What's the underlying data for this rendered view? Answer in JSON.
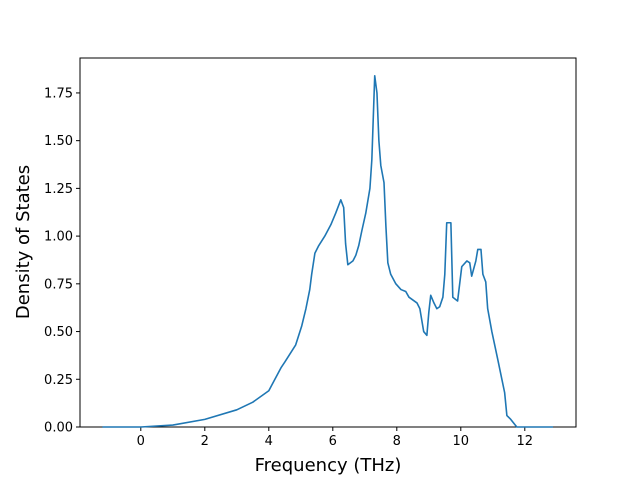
{
  "chart_data": {
    "type": "line",
    "xlabel": "Frequency (THz)",
    "ylabel": "Density of States",
    "x": [
      -1.2,
      0,
      1,
      2,
      3,
      3.5,
      4,
      4.38,
      4.5,
      4.84,
      5.03,
      5.16,
      5.28,
      5.34,
      5.44,
      5.56,
      5.75,
      5.94,
      6.09,
      6.25,
      6.34,
      6.4,
      6.47,
      6.63,
      6.72,
      6.81,
      6.91,
      7.03,
      7.16,
      7.22,
      7.31,
      7.38,
      7.44,
      7.5,
      7.6,
      7.66,
      7.72,
      7.81,
      7.97,
      8.13,
      8.28,
      8.38,
      8.63,
      8.72,
      8.84,
      8.94,
      9.0,
      9.06,
      9.16,
      9.25,
      9.34,
      9.44,
      9.5,
      9.56,
      9.69,
      9.75,
      9.9,
      10.03,
      10.19,
      10.28,
      10.34,
      10.47,
      10.53,
      10.63,
      10.69,
      10.78,
      10.84,
      10.97,
      11.16,
      11.37,
      11.44,
      11.56,
      11.75,
      12.88
    ],
    "series": [
      {
        "color": "#1f77b4",
        "values": [
          0,
          0,
          0.01,
          0.04,
          0.09,
          0.13,
          0.19,
          0.31,
          0.34,
          0.43,
          0.53,
          0.62,
          0.72,
          0.8,
          0.91,
          0.95,
          1.0,
          1.06,
          1.12,
          1.19,
          1.15,
          0.96,
          0.85,
          0.87,
          0.9,
          0.95,
          1.03,
          1.12,
          1.25,
          1.4,
          1.84,
          1.75,
          1.5,
          1.37,
          1.28,
          1.05,
          0.86,
          0.8,
          0.75,
          0.72,
          0.71,
          0.68,
          0.65,
          0.62,
          0.5,
          0.48,
          0.6,
          0.69,
          0.65,
          0.62,
          0.63,
          0.68,
          0.8,
          1.07,
          1.07,
          0.68,
          0.66,
          0.84,
          0.87,
          0.86,
          0.79,
          0.87,
          0.93,
          0.93,
          0.8,
          0.76,
          0.62,
          0.5,
          0.35,
          0.18,
          0.06,
          0.04,
          0,
          0
        ]
      }
    ],
    "xlim": [
      -1.9,
      13.6
    ],
    "ylim": [
      0,
      1.933
    ],
    "xticks": [
      0,
      2,
      4,
      6,
      8,
      10,
      12
    ],
    "yticks": [
      {
        "value": 0,
        "label": "0.00"
      },
      {
        "value": 0.25,
        "label": "0.25"
      },
      {
        "value": 0.5,
        "label": "0.50"
      },
      {
        "value": 0.75,
        "label": "0.75"
      },
      {
        "value": 1.0,
        "label": "1.00"
      },
      {
        "value": 1.25,
        "label": "1.25"
      },
      {
        "value": 1.5,
        "label": "1.50"
      },
      {
        "value": 1.75,
        "label": "1.75"
      }
    ]
  }
}
